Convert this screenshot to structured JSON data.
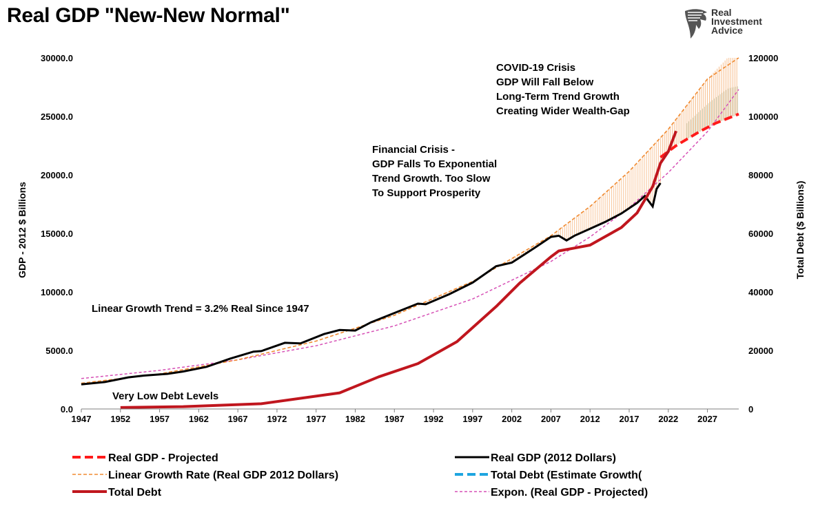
{
  "title": "Real GDP \"New-New Normal\"",
  "brand": {
    "line1": "Real",
    "line2": "Investment",
    "line3": "Advice",
    "icon": "eagle-head-logo"
  },
  "colors": {
    "real_gdp": "#000000",
    "real_gdp_projected": "#ff1a1a",
    "linear_trend": "#f4a460",
    "linear_trend_stroke": "#f08a30",
    "total_debt": "#c0161e",
    "total_debt_estimate": "#1ea5e0",
    "expon_trend": "#d64fb5",
    "gap_fill": "#5a7a3a"
  },
  "chart_data": {
    "type": "line",
    "title": "Real GDP \"New-New Normal\"",
    "ylabel_left": "GDP - 2012 $ Billions",
    "ylabel_right": "Total Debt ($ Billions)",
    "ylim_left": [
      0,
      30000
    ],
    "ylim_right": [
      0,
      120000
    ],
    "xlim": [
      1947,
      2031
    ],
    "left_ticks": [
      "0.0",
      "5000.0",
      "10000.0",
      "15000.0",
      "20000.0",
      "25000.0",
      "30000.0"
    ],
    "right_ticks": [
      "0",
      "20000",
      "40000",
      "60000",
      "80000",
      "100000",
      "120000"
    ],
    "x_ticks": [
      "1947",
      "1952",
      "1957",
      "1962",
      "1967",
      "1972",
      "1977",
      "1982",
      "1987",
      "1992",
      "1997",
      "2002",
      "2007",
      "2012",
      "2017",
      "2022",
      "2027"
    ],
    "grid": false,
    "legend_position": "bottom",
    "series": [
      {
        "name": "Real GDP (2012 Dollars)",
        "axis": "left",
        "style": "solid-thin",
        "points": [
          [
            1947,
            2100
          ],
          [
            1950,
            2300
          ],
          [
            1953,
            2700
          ],
          [
            1955,
            2850
          ],
          [
            1958,
            3000
          ],
          [
            1960,
            3200
          ],
          [
            1963,
            3600
          ],
          [
            1966,
            4300
          ],
          [
            1969,
            4900
          ],
          [
            1970,
            4950
          ],
          [
            1973,
            5650
          ],
          [
            1975,
            5600
          ],
          [
            1978,
            6400
          ],
          [
            1980,
            6750
          ],
          [
            1982,
            6700
          ],
          [
            1984,
            7400
          ],
          [
            1987,
            8200
          ],
          [
            1990,
            9000
          ],
          [
            1991,
            8950
          ],
          [
            1994,
            9800
          ],
          [
            1997,
            10800
          ],
          [
            2000,
            12200
          ],
          [
            2002,
            12500
          ],
          [
            2005,
            13800
          ],
          [
            2007,
            14700
          ],
          [
            2008,
            14800
          ],
          [
            2009,
            14400
          ],
          [
            2010,
            14800
          ],
          [
            2012,
            15400
          ],
          [
            2014,
            16000
          ],
          [
            2016,
            16700
          ],
          [
            2018,
            17600
          ],
          [
            2019,
            18200
          ],
          [
            2020,
            17300
          ],
          [
            2020.5,
            18800
          ],
          [
            2021,
            19300
          ]
        ]
      },
      {
        "name": "Real GDP - Projected",
        "axis": "left",
        "style": "dashed-thick",
        "points": [
          [
            2021,
            21500
          ],
          [
            2023,
            22500
          ],
          [
            2026,
            23700
          ],
          [
            2028,
            24400
          ],
          [
            2031,
            25200
          ]
        ]
      },
      {
        "name": "Linear Growth Rate (Real GDP 2012 Dollars)",
        "axis": "left",
        "style": "dashed-thin",
        "points": [
          [
            1947,
            2200
          ],
          [
            1957,
            3000
          ],
          [
            1967,
            4200
          ],
          [
            1977,
            5800
          ],
          [
            1987,
            8000
          ],
          [
            1997,
            10900
          ],
          [
            2007,
            14800
          ],
          [
            2012,
            17300
          ],
          [
            2017,
            20300
          ],
          [
            2022,
            23900
          ],
          [
            2027,
            28200
          ],
          [
            2031,
            31000
          ]
        ]
      },
      {
        "name": "Expon. (Real GDP - Projected)",
        "axis": "left",
        "style": "dotted-pink",
        "points": [
          [
            1947,
            2600
          ],
          [
            1957,
            3300
          ],
          [
            1967,
            4200
          ],
          [
            1977,
            5400
          ],
          [
            1987,
            7100
          ],
          [
            1997,
            9400
          ],
          [
            2007,
            12600
          ],
          [
            2012,
            14700
          ],
          [
            2017,
            17200
          ],
          [
            2022,
            20200
          ],
          [
            2027,
            23700
          ],
          [
            2031,
            27300
          ]
        ]
      },
      {
        "name": "Total Debt",
        "axis": "right",
        "style": "solid-thick",
        "points": [
          [
            1952,
            500
          ],
          [
            1960,
            800
          ],
          [
            1970,
            1800
          ],
          [
            1980,
            5500
          ],
          [
            1985,
            11000
          ],
          [
            1990,
            15500
          ],
          [
            1995,
            23000
          ],
          [
            2000,
            35000
          ],
          [
            2003,
            43000
          ],
          [
            2007,
            52000
          ],
          [
            2008,
            54000
          ],
          [
            2009,
            54500
          ],
          [
            2010,
            55000
          ],
          [
            2012,
            56000
          ],
          [
            2014,
            59000
          ],
          [
            2016,
            62000
          ],
          [
            2018,
            67000
          ],
          [
            2020,
            76000
          ],
          [
            2021,
            84000
          ],
          [
            2022,
            88000
          ],
          [
            2023,
            95000
          ]
        ]
      },
      {
        "name": "Total Debt (Estimate Growth(",
        "axis": "right",
        "style": "dashed-blue",
        "points": []
      }
    ],
    "annotations": [
      {
        "lines": [
          "COVID-19 Crisis",
          "GDP Will Fall Below",
          "Long-Term Trend Growth",
          "Creating Wider Wealth-Gap"
        ]
      },
      {
        "lines": [
          "Financial Crisis -",
          "GDP Falls To Exponential",
          "Trend Growth. Too Slow",
          "To Support Prosperity"
        ]
      },
      {
        "lines": [
          "Linear Growth Trend = 3.2% Real Since 1947"
        ]
      },
      {
        "lines": [
          "Very Low Debt Levels"
        ]
      }
    ],
    "legend": [
      {
        "label": "Real GDP - Projected",
        "series": "Real GDP - Projected"
      },
      {
        "label": "Real GDP (2012 Dollars)",
        "series": "Real GDP (2012 Dollars)"
      },
      {
        "label": "Linear Growth Rate (Real GDP 2012 Dollars)",
        "series": "Linear Growth Rate (Real GDP 2012 Dollars)"
      },
      {
        "label": "Total Debt (Estimate Growth(",
        "series": "Total Debt (Estimate Growth("
      },
      {
        "label": "Total Debt",
        "series": "Total Debt"
      },
      {
        "label": "Expon. (Real GDP - Projected)",
        "series": "Expon. (Real GDP - Projected)"
      }
    ]
  }
}
